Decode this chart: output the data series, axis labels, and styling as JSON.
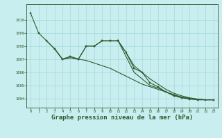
{
  "background_color": "#c8eef0",
  "grid_color": "#aadddd",
  "line_color": "#2d5a2d",
  "xlabel": "Graphe pression niveau de la mer (hPa)",
  "xlabel_fontsize": 6.5,
  "ylim": [
    1003.3,
    1011.2
  ],
  "xlim": [
    -0.5,
    23.5
  ],
  "yticks": [
    1004,
    1005,
    1006,
    1007,
    1008,
    1009,
    1010
  ],
  "xticks": [
    0,
    1,
    2,
    3,
    4,
    5,
    6,
    7,
    8,
    9,
    10,
    11,
    12,
    13,
    14,
    15,
    16,
    17,
    18,
    19,
    20,
    21,
    22,
    23
  ],
  "series": {
    "s1": {
      "x": [
        0,
        1
      ],
      "y": [
        1010.5,
        1009.0
      ],
      "markers": true
    },
    "s2": {
      "x": [
        1,
        2,
        3,
        4,
        5,
        6,
        7,
        8,
        9,
        10,
        11,
        12,
        13,
        14,
        15,
        16,
        17,
        18,
        19,
        20,
        21,
        22,
        23
      ],
      "y": [
        1009.0,
        1008.4,
        1007.8,
        1007.0,
        1007.1,
        1007.0,
        1006.9,
        1006.7,
        1006.5,
        1006.3,
        1006.0,
        1005.7,
        1005.4,
        1005.1,
        1004.9,
        1004.7,
        1004.5,
        1004.3,
        1004.1,
        1004.0,
        1003.95,
        1003.9,
        1003.9
      ],
      "markers": false
    },
    "s3": {
      "x": [
        2,
        3,
        4,
        5,
        6,
        7,
        8,
        9,
        10,
        11
      ],
      "y": [
        1008.4,
        1007.8,
        1007.0,
        1007.2,
        1007.0,
        1008.0,
        1008.0,
        1008.4,
        1008.4,
        1008.4
      ],
      "markers": true
    },
    "s4": {
      "x": [
        3,
        4,
        5,
        6,
        7,
        8,
        9,
        10,
        11
      ],
      "y": [
        1007.8,
        1007.0,
        1007.2,
        1007.0,
        1008.0,
        1008.0,
        1008.4,
        1008.4,
        1008.4
      ],
      "markers": true
    },
    "s5": {
      "x": [
        11,
        12,
        13,
        14,
        15,
        16,
        17,
        18,
        19,
        20,
        21,
        22,
        23
      ],
      "y": [
        1008.4,
        1007.5,
        1006.3,
        1006.0,
        1005.2,
        1004.9,
        1004.5,
        1004.2,
        1004.05,
        1003.95,
        1003.9,
        1003.9,
        1003.9
      ],
      "markers": true
    },
    "s6": {
      "x": [
        11,
        12,
        13,
        14,
        15,
        16,
        17,
        18,
        19,
        20,
        21,
        22,
        23
      ],
      "y": [
        1008.4,
        1007.5,
        1006.5,
        1006.0,
        1005.5,
        1005.1,
        1004.7,
        1004.4,
        1004.2,
        1004.05,
        1003.95,
        1003.9,
        1003.9
      ],
      "markers": false
    },
    "s7": {
      "x": [
        11,
        12,
        13,
        14,
        15,
        16,
        17,
        18,
        19,
        20,
        21,
        22,
        23
      ],
      "y": [
        1008.4,
        1007.2,
        1006.0,
        1005.5,
        1005.0,
        1004.8,
        1004.5,
        1004.25,
        1004.1,
        1004.0,
        1003.9,
        1003.9,
        1003.9
      ],
      "markers": false
    }
  }
}
